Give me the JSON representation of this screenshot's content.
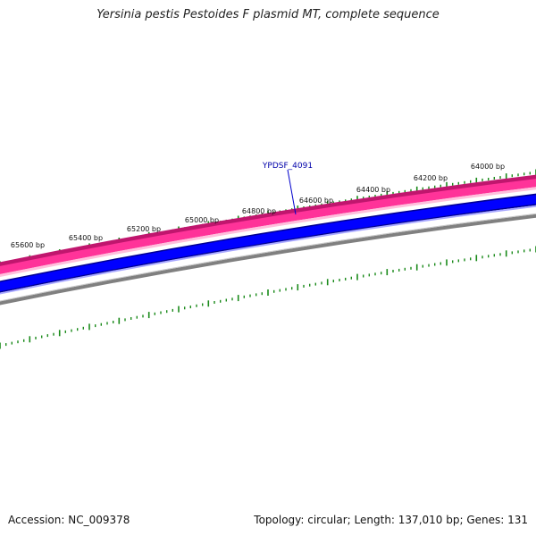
{
  "title": "Yersinia pestis Pestoides F plasmid MT, complete sequence",
  "footer": {
    "accession": "Accession: NC_009378",
    "stats": "Topology: circular; Length: 137,010 bp; Genes: 131"
  },
  "ruler": {
    "labels": [
      "65600 bp",
      "65400 bp",
      "65200 bp",
      "65000 bp",
      "64800 bp",
      "64600 bp",
      "64400 bp",
      "64200 bp",
      "64000 bp"
    ]
  },
  "gene_label": "YPDSF_4091",
  "colors": {
    "forward_cds": "#ff3399",
    "forward_edge": "#c0166e",
    "reverse_cds": "#0000ff",
    "reverse_edge": "#000090",
    "backbone": "#808080",
    "ticks": "#1a8a1a",
    "label_line": "#0000cc"
  }
}
